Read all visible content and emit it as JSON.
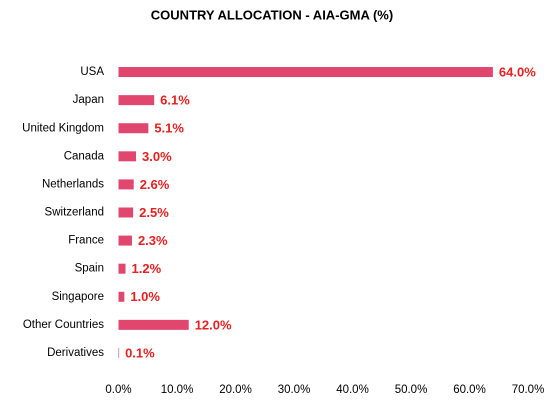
{
  "chart_data": {
    "type": "bar",
    "orientation": "horizontal",
    "title": "COUNTRY ALLOCATION - AIA-GMA (%)",
    "categories": [
      "USA",
      "Japan",
      "United Kingdom",
      "Canada",
      "Netherlands",
      "Switzerland",
      "France",
      "Spain",
      "Singapore",
      "Other Countries",
      "Derivatives"
    ],
    "values": [
      64.0,
      6.1,
      5.1,
      3.0,
      2.6,
      2.5,
      2.3,
      1.2,
      1.0,
      12.0,
      0.1
    ],
    "value_labels": [
      "64.0%",
      "6.1%",
      "5.1%",
      "3.0%",
      "2.6%",
      "2.5%",
      "2.3%",
      "1.2%",
      "1.0%",
      "12.0%",
      "0.1%"
    ],
    "color": "#e0466e",
    "label_color": "#e8201f",
    "xlim": [
      0,
      70
    ],
    "xticks": [
      {
        "value": 0,
        "label": "0.0%"
      },
      {
        "value": 10,
        "label": "10.0%"
      },
      {
        "value": 20,
        "label": "20.0%"
      },
      {
        "value": 30,
        "label": "30.0%"
      },
      {
        "value": 40,
        "label": "40.0%"
      },
      {
        "value": 50,
        "label": "50.0%"
      },
      {
        "value": 60,
        "label": "60.0%"
      },
      {
        "value": 70,
        "label": "70.0%"
      }
    ],
    "grid": false
  }
}
